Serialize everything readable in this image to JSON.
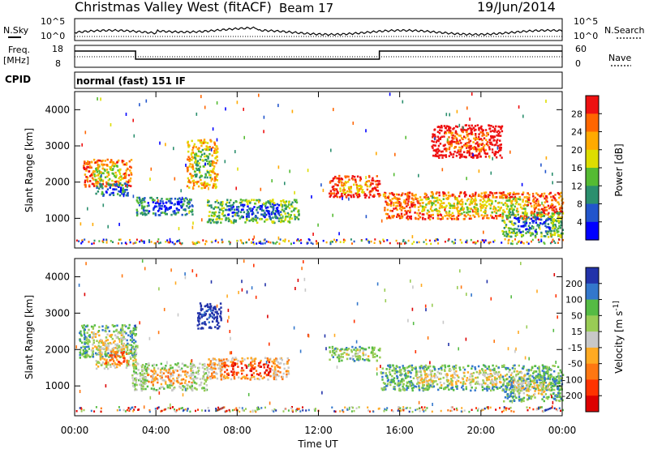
{
  "header": {
    "station": "Christmas Valley West (fitACF)",
    "beam": "Beam 17",
    "date": "19/Jun/2014"
  },
  "noise_panel": {
    "left_label": "N.Sky",
    "right_label": "N.Search",
    "left_ticks": [
      "10^5",
      "10^0"
    ],
    "right_ticks": [
      "10^5",
      "10^0"
    ]
  },
  "freq_panel": {
    "left_label_1": "Freq.",
    "left_label_2": "[MHz]",
    "left_ticks": [
      "18",
      "8"
    ],
    "right_label": "Nave",
    "right_ticks": [
      "60",
      "0"
    ]
  },
  "cpid": {
    "label": "CPID",
    "value": "normal (fast) 151 IF"
  },
  "chart_data": [
    {
      "type": "heatmap",
      "title": "",
      "xlabel": "",
      "ylabel": "Slant Range [km]",
      "x_range_hours": [
        0,
        24
      ],
      "ylim": [
        180,
        4500
      ],
      "yticks": [
        "1000",
        "2000",
        "3000",
        "4000"
      ],
      "colorbar": {
        "label": "Power [dB]",
        "ticks": [
          "28",
          "24",
          "20",
          "16",
          "12",
          "8",
          "4"
        ],
        "colors": [
          "#ee1111",
          "#ff6600",
          "#ffaa00",
          "#dddd00",
          "#55bb33",
          "#2b8f6e",
          "#2255cc",
          "#0000ff"
        ]
      },
      "features": [
        {
          "t0": 0.4,
          "t1": 2.8,
          "r0": 1900,
          "r1": 2650,
          "level": 3
        },
        {
          "t0": 1.0,
          "t1": 2.6,
          "r0": 1650,
          "r1": 2000,
          "level": 7
        },
        {
          "t0": 3.0,
          "t1": 5.8,
          "r0": 1100,
          "r1": 1600,
          "level": 7
        },
        {
          "t0": 5.5,
          "t1": 7.0,
          "r0": 1850,
          "r1": 3200,
          "level": 4
        },
        {
          "t0": 6.5,
          "t1": 11.0,
          "r0": 900,
          "r1": 1550,
          "level": 6
        },
        {
          "t0": 12.5,
          "t1": 15.0,
          "r0": 1600,
          "r1": 2200,
          "level": 2
        },
        {
          "t0": 15.2,
          "t1": 24.0,
          "r0": 1000,
          "r1": 1750,
          "level": 3
        },
        {
          "t0": 21.0,
          "t1": 24.0,
          "r0": 500,
          "r1": 1200,
          "level": 6
        },
        {
          "t0": 17.5,
          "t1": 21.0,
          "r0": 2700,
          "r1": 3600,
          "level": 1
        }
      ]
    },
    {
      "type": "heatmap",
      "title": "",
      "xlabel": "Time UT",
      "ylabel": "Slant Range [km]",
      "x_range_hours": [
        0,
        24
      ],
      "xticks": [
        "00:00",
        "04:00",
        "08:00",
        "12:00",
        "16:00",
        "20:00",
        "00:00"
      ],
      "ylim": [
        180,
        4500
      ],
      "yticks": [
        "1000",
        "2000",
        "3000",
        "4000"
      ],
      "colorbar": {
        "label": "Velocity [m s^-1]",
        "ticks": [
          "200",
          "100",
          "50",
          "15",
          "-15",
          "-50",
          "-100",
          "-200"
        ],
        "colors": [
          "#2233aa",
          "#3377cc",
          "#55bb44",
          "#99cc55",
          "#c8c8c8",
          "#ffaa22",
          "#ff7711",
          "#ff3300",
          "#dd0000"
        ]
      },
      "features": [
        {
          "t0": 0.2,
          "t1": 3.0,
          "r0": 1800,
          "r1": 2700,
          "level": 4
        },
        {
          "t0": 1.0,
          "t1": 3.0,
          "r0": 1500,
          "r1": 2100,
          "level": 6
        },
        {
          "t0": 2.8,
          "t1": 6.5,
          "r0": 900,
          "r1": 1650,
          "level": 5
        },
        {
          "t0": 6.0,
          "t1": 7.2,
          "r0": 2600,
          "r1": 3300,
          "level": 0
        },
        {
          "t0": 6.5,
          "t1": 10.5,
          "r0": 1200,
          "r1": 1800,
          "level": 7
        },
        {
          "t0": 12.5,
          "t1": 15.0,
          "r0": 1700,
          "r1": 2100,
          "level": 4
        },
        {
          "t0": 15.0,
          "t1": 24.0,
          "r0": 900,
          "r1": 1600,
          "level": 4
        },
        {
          "t0": 21.0,
          "t1": 24.0,
          "r0": 600,
          "r1": 1300,
          "level": 4
        }
      ]
    }
  ]
}
